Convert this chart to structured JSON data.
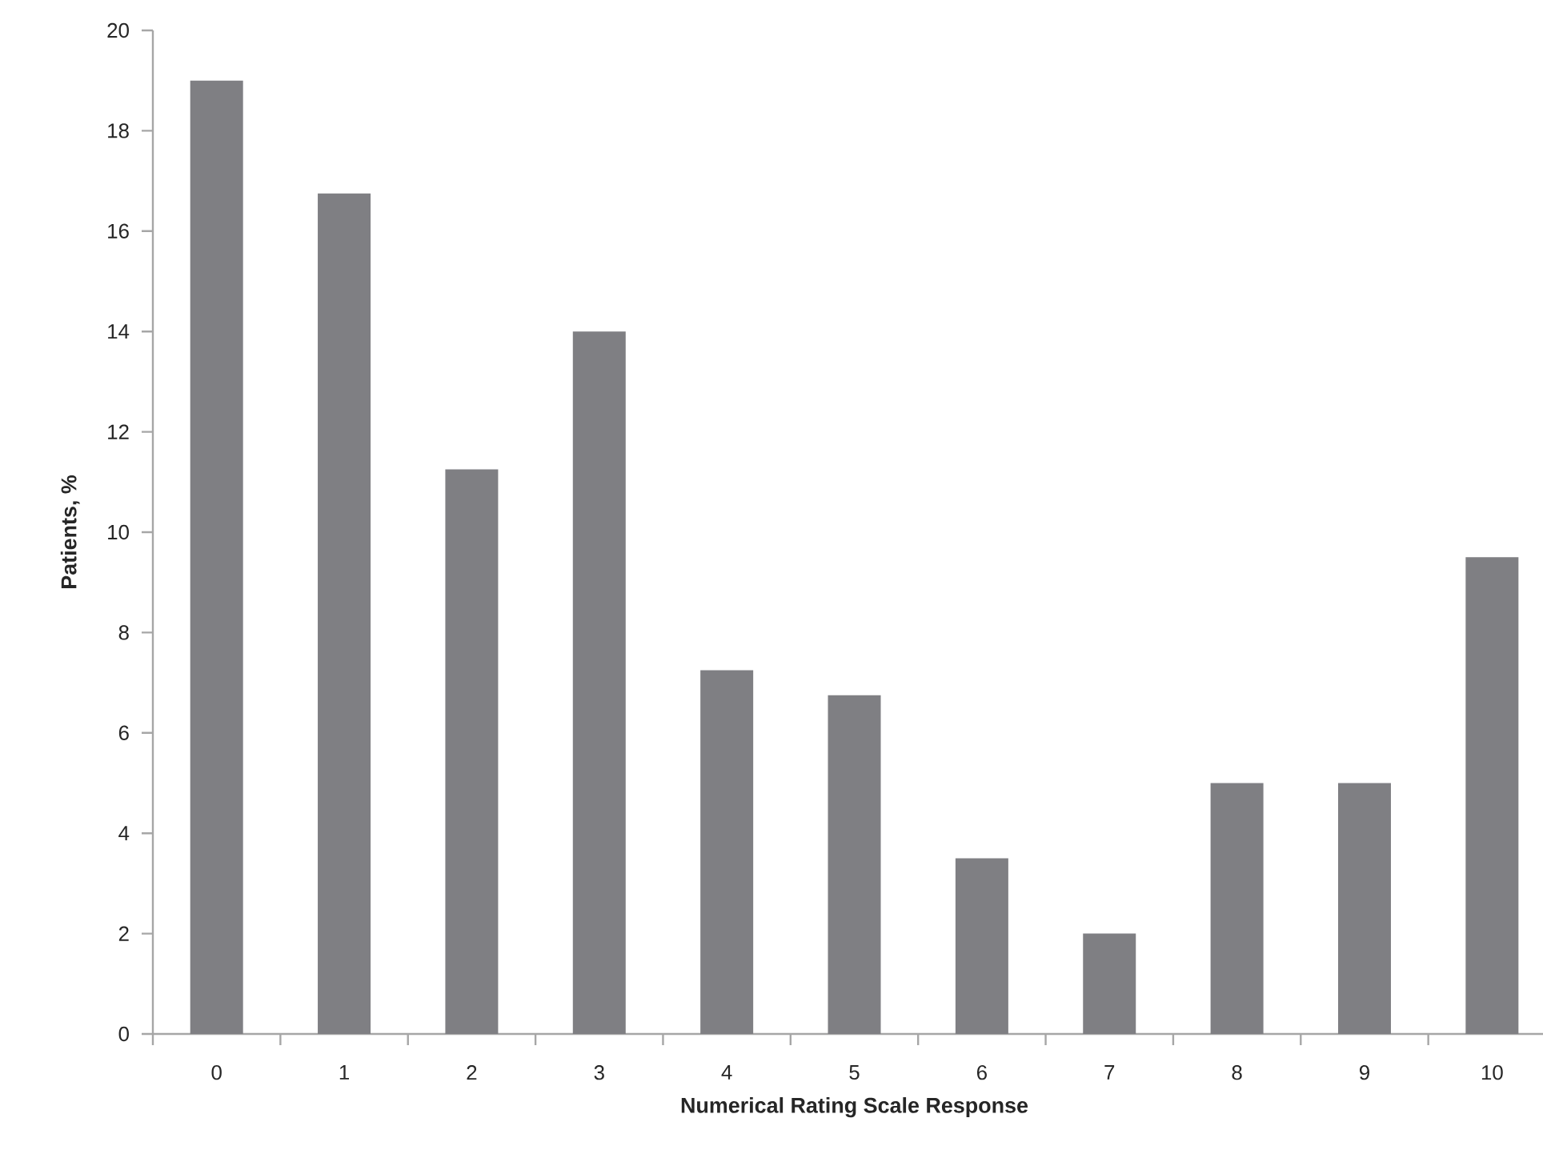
{
  "chart_data": {
    "type": "bar",
    "xlabel": "Numerical Rating Scale Response",
    "ylabel": "Patients, %",
    "categories": [
      "0",
      "1",
      "2",
      "3",
      "4",
      "5",
      "6",
      "7",
      "8",
      "9",
      "10"
    ],
    "values": [
      19,
      16.75,
      11.25,
      14,
      7.25,
      6.75,
      3.5,
      2,
      5,
      5,
      9.5
    ],
    "color": "#7f7f83",
    "ylim": [
      0,
      20
    ],
    "yticks": [
      0,
      2,
      4,
      6,
      8,
      10,
      12,
      14,
      16,
      18,
      20
    ]
  }
}
